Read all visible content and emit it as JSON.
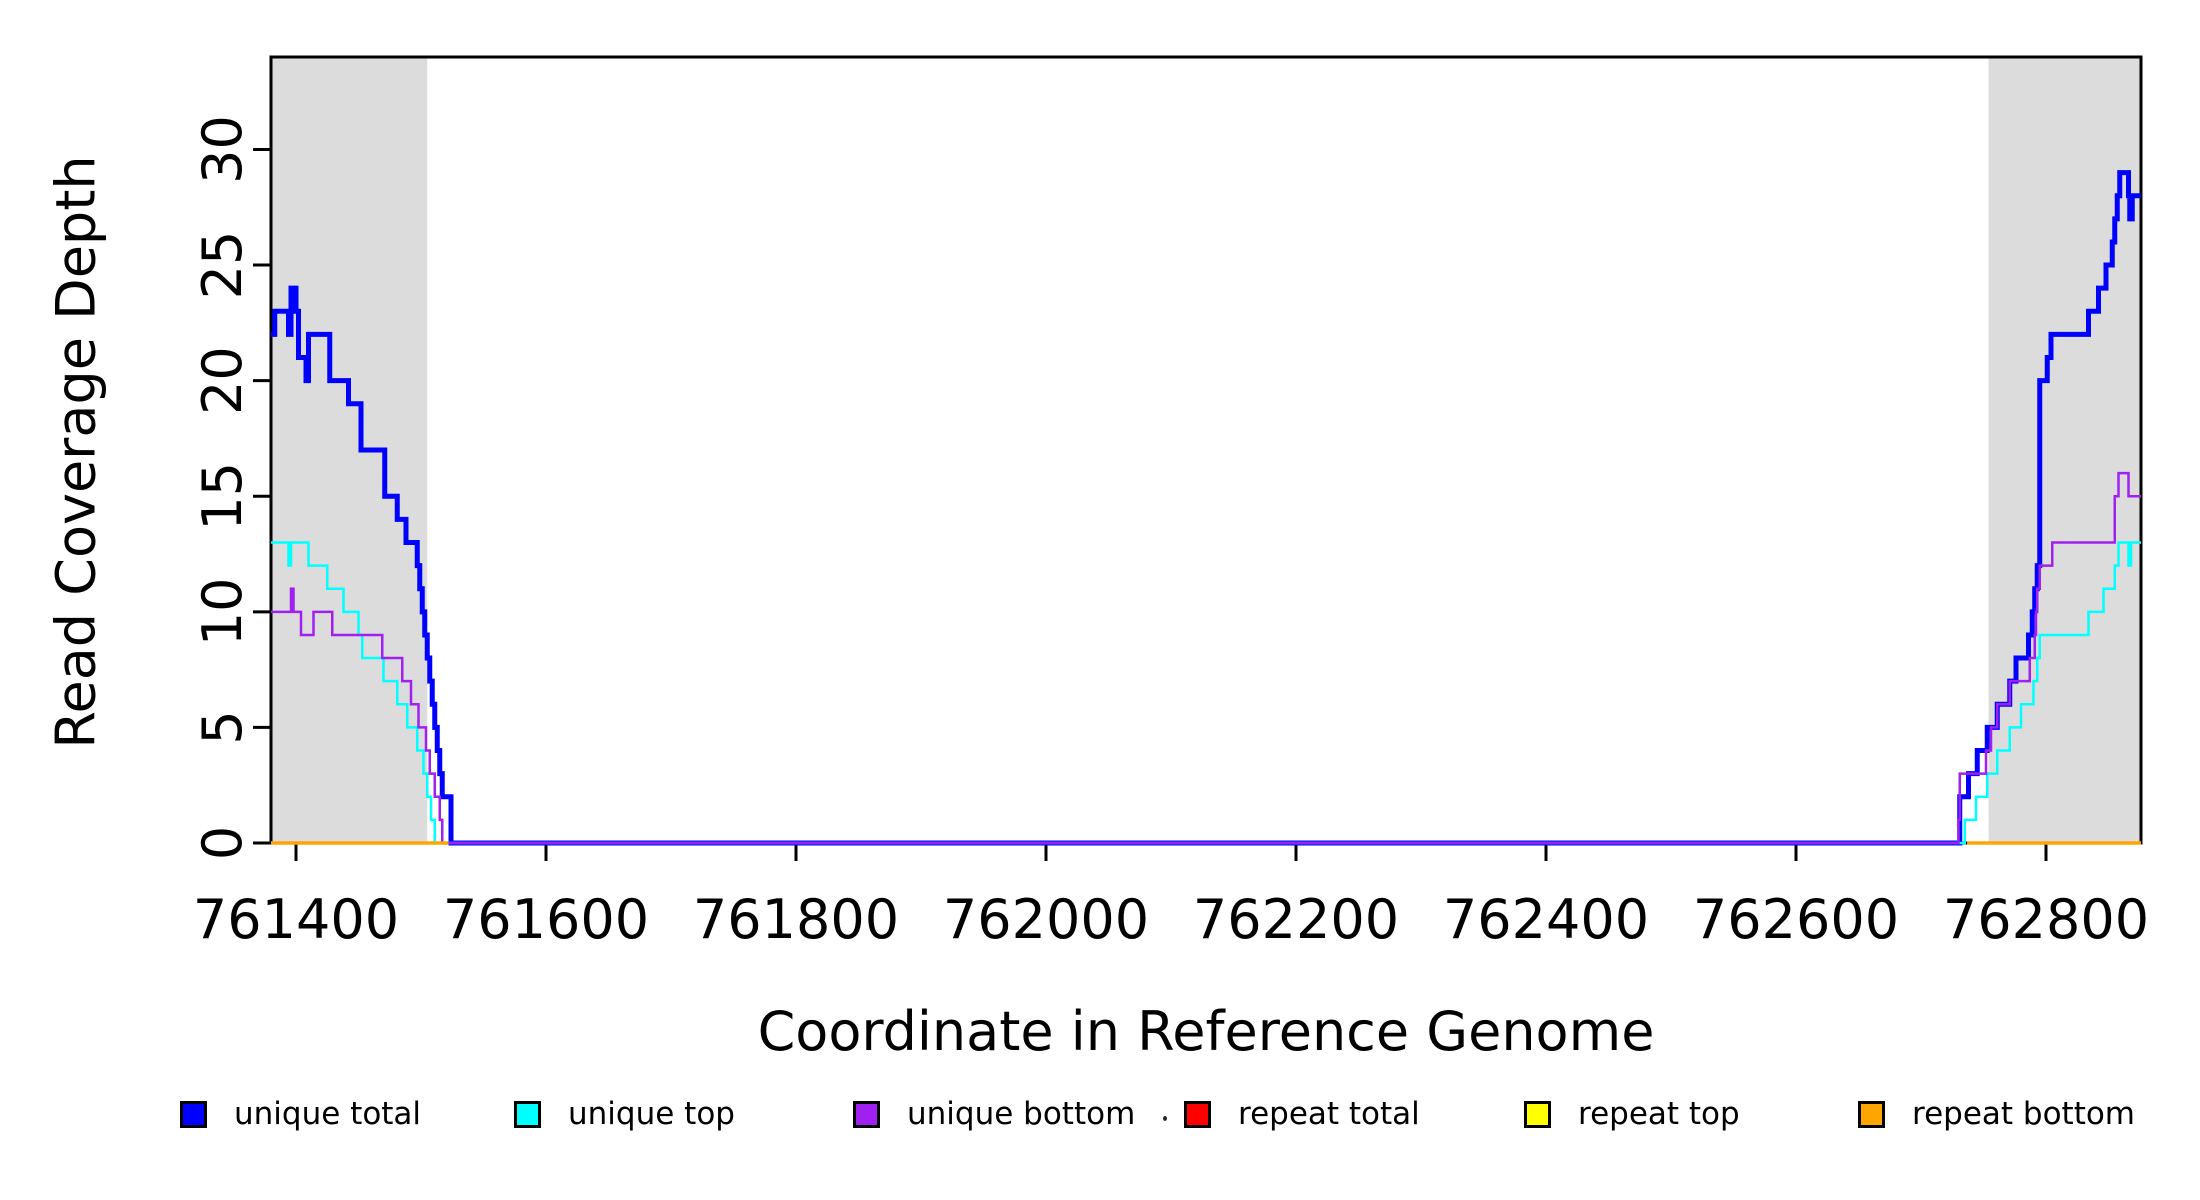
{
  "chart_data": {
    "type": "line",
    "subtype": "step",
    "title": "",
    "xlabel": "Coordinate in Reference Genome",
    "ylabel": "Read Coverage Depth",
    "xlim": [
      761380,
      762876
    ],
    "ylim": [
      0,
      34
    ],
    "x_ticks": [
      761400,
      761600,
      761800,
      762000,
      762200,
      762400,
      762600,
      762800
    ],
    "y_ticks": [
      0,
      5,
      10,
      15,
      20,
      25,
      30
    ],
    "grid": false,
    "legend_position": "bottom",
    "background_color": "#ffffff",
    "shade_color": "#DCDCDC",
    "shaded_regions": [
      {
        "name": "left-repeat-region",
        "x0": 761380,
        "x1": 761505
      },
      {
        "name": "right-repeat-region",
        "x0": 762754,
        "x1": 762876
      }
    ],
    "series": [
      {
        "name": "unique total",
        "color": "#0000FF",
        "line_width": 5,
        "segments": [
          [
            [
              761380,
              22
            ],
            [
              761383,
              23
            ],
            [
              761394,
              22
            ],
            [
              761396,
              24
            ],
            [
              761400,
              23
            ],
            [
              761402,
              21
            ],
            [
              761408,
              20
            ],
            [
              761410,
              22
            ],
            [
              761427,
              20
            ],
            [
              761442,
              19
            ],
            [
              761452,
              17
            ],
            [
              761471,
              15
            ],
            [
              761481,
              14
            ],
            [
              761488,
              13
            ],
            [
              761497,
              12
            ],
            [
              761499,
              11
            ],
            [
              761501,
              10
            ],
            [
              761503,
              9
            ],
            [
              761505,
              8
            ],
            [
              761507,
              7
            ],
            [
              761509,
              6
            ],
            [
              761511,
              5
            ],
            [
              761513,
              4
            ],
            [
              761515,
              3
            ],
            [
              761517,
              2
            ],
            [
              761524,
              0
            ],
            [
              762731,
              2
            ],
            [
              762738,
              3
            ],
            [
              762745,
              4
            ],
            [
              762753,
              5
            ],
            [
              762761,
              6
            ],
            [
              762771,
              7
            ],
            [
              762776,
              8
            ],
            [
              762786,
              9
            ],
            [
              762789,
              10
            ],
            [
              762791,
              11
            ],
            [
              762793,
              12
            ],
            [
              762795,
              20
            ],
            [
              762801,
              21
            ],
            [
              762804,
              22
            ],
            [
              762834,
              23
            ],
            [
              762842,
              24
            ],
            [
              762848,
              25
            ],
            [
              762853,
              26
            ],
            [
              762855,
              27
            ],
            [
              762857,
              28
            ],
            [
              762859,
              29
            ],
            [
              762866,
              28
            ],
            [
              762867,
              27
            ],
            [
              762869,
              28
            ],
            [
              762876,
              28
            ]
          ]
        ]
      },
      {
        "name": "unique top",
        "color": "#00FFFF",
        "line_width": 2.5,
        "segments": [
          [
            [
              761380,
              13
            ],
            [
              761394,
              12
            ],
            [
              761396,
              13
            ],
            [
              761410,
              12
            ],
            [
              761425,
              11
            ],
            [
              761438,
              10
            ],
            [
              761450,
              9
            ],
            [
              761453,
              8
            ],
            [
              761470,
              7
            ],
            [
              761481,
              6
            ],
            [
              761489,
              5
            ],
            [
              761497,
              4
            ],
            [
              761502,
              3
            ],
            [
              761505,
              2
            ],
            [
              761508,
              1
            ],
            [
              761511,
              0
            ],
            [
              762735,
              1
            ],
            [
              762744,
              2
            ],
            [
              762753,
              3
            ],
            [
              762761,
              4
            ],
            [
              762771,
              5
            ],
            [
              762780,
              6
            ],
            [
              762790,
              7
            ],
            [
              762793,
              8
            ],
            [
              762795,
              9
            ],
            [
              762834,
              10
            ],
            [
              762846,
              11
            ],
            [
              762855,
              12
            ],
            [
              762858,
              13
            ],
            [
              762866,
              12
            ],
            [
              762868,
              13
            ],
            [
              762876,
              13
            ]
          ]
        ]
      },
      {
        "name": "unique bottom",
        "color": "#A020F0",
        "line_width": 2.5,
        "segments": [
          [
            [
              761380,
              10
            ],
            [
              761396,
              11
            ],
            [
              761398,
              10
            ],
            [
              761404,
              9
            ],
            [
              761414,
              10
            ],
            [
              761429,
              9
            ],
            [
              761469,
              8
            ],
            [
              761485,
              7
            ],
            [
              761492,
              6
            ],
            [
              761498,
              5
            ],
            [
              761504,
              4
            ],
            [
              761507,
              3
            ],
            [
              761511,
              2
            ],
            [
              761515,
              1
            ],
            [
              761517,
              0
            ],
            [
              762730,
              1
            ],
            [
              762731,
              3
            ],
            [
              762752,
              4
            ],
            [
              762756,
              5
            ],
            [
              762761,
              6
            ],
            [
              762771,
              7
            ],
            [
              762787,
              8
            ],
            [
              762791,
              9
            ],
            [
              762792,
              10
            ],
            [
              762793,
              11
            ],
            [
              762795,
              12
            ],
            [
              762805,
              13
            ],
            [
              762855,
              15
            ],
            [
              762858,
              16
            ],
            [
              762866,
              15
            ],
            [
              762876,
              15
            ]
          ]
        ]
      },
      {
        "name": "repeat total",
        "color": "#FF0000",
        "line_width": 3,
        "segments": [
          [
            [
              761380,
              0
            ],
            [
              761522,
              0
            ]
          ],
          [
            [
              762737,
              0
            ],
            [
              762876,
              0
            ]
          ]
        ]
      },
      {
        "name": "repeat top",
        "color": "#FFFF00",
        "line_width": 3,
        "segments": [
          [
            [
              761380,
              0
            ],
            [
              761522,
              0
            ]
          ],
          [
            [
              762737,
              0
            ],
            [
              762876,
              0
            ]
          ]
        ]
      },
      {
        "name": "repeat bottom",
        "color": "#FFA500",
        "line_width": 3.5,
        "segments": [
          [
            [
              761380,
              0
            ],
            [
              761522,
              0
            ]
          ],
          [
            [
              762737,
              0
            ],
            [
              762876,
              0
            ]
          ]
        ]
      }
    ]
  }
}
